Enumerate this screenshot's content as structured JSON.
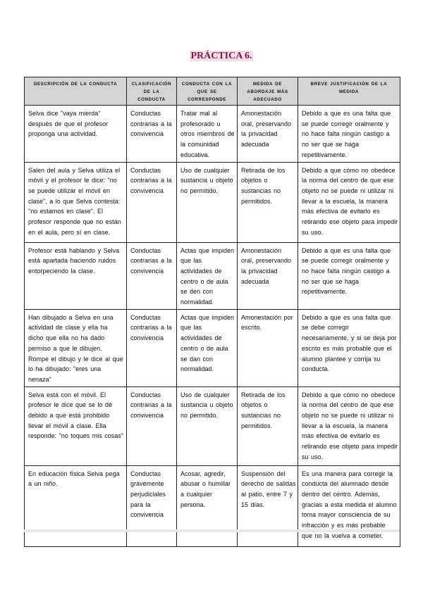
{
  "title": "PRÁCTICA 6.",
  "table": {
    "headers": [
      "DESCRIPCIÓN DE LA CONDUCTA",
      "CLASIFICACIÓN DE LA CONDUCTA",
      "CONDUCTA CON LA QUE SE CORRESPONDE",
      "MEDIDA DE ABORDAJE MÁS ADECUADO",
      "BREVE JUSTIFICACIÓN DE LA MEDIDA"
    ],
    "rows": [
      [
        "Selva dice \"vaya mierda\" después de que el profesor proponga una actividad.",
        "Conductas contrarias a la convivencia",
        "Tratar mal al profesorado u otros miembros de la comunidad educativa.",
        "Amonestación oral, preservando la privacidad adecuada",
        "Debido a que es una falta que se puede corregir oralmente y no hace falta ningún castigo a no ser que se haga repetitivamente."
      ],
      [
        "Salen del aula y Selva utiliza el móvil y el profesor le dice: \"no se puede utilizar el móvil en clase\", a lo que Selva contesta: \"no estamos en clase\". El profesor responde que no están en el aula, pero sí en clase.",
        "Conductas contrarias a la convivencia",
        "Uso de cualquier sustancia u objeto no permitido.",
        "Retirada de los objetos o sustancias no permitidos.",
        "Debido a que cómo no obedece la norma del centro de que ese objeto no se puede ni utilizar ni llevar a la escuela, la manera más efectiva de evitarlo es retirando ese objeto para impedir su uso."
      ],
      [
        "Profesor está hablando y Selva está apartada haciendo ruidos entorpeciendo la clase.",
        "Conductas contrarias a la convivencia",
        "Actas que impiden que las actividades de centro o de aula se den con normalidad.",
        "Amonestación oral, preservando la privacidad adecuada",
        "Debido a que es una falta que se puede corregir oralmente y no hace falta ningún castigo a no ser que se haga repetitivamente."
      ],
      [
        "Han dibujado a Selva en una actividad de clase y ella ha dicho que ella no ha dado permiso a que le dibujen. Rompe el dibujo y le dice al que lo ha dibujado: \"eres una nenaza\"",
        "Conductas contrarias a la convivencia",
        "Actas que impiden que las actividades de centro o de aula se dan con normalidad.",
        "Amonestación por escrito.",
        "Debido a que es una falta que se debe corregir necesariamente, y si se deja por escrito es más probable que el alumno plantee y corrija su conducta."
      ],
      [
        "Selva está con el móvil. El profesor le dice que se lo dé debido a que está prohibido llevar el móvil a clase. Ella responde: \"no toques mis cosas\"",
        "Conductas contrarias a la convivencia",
        "Uso de cualquier sustancia u objeto no permitido.",
        "Retirada de los objetos o sustancias no permitidos.",
        "Debido a que cómo no obedece la norma del centro de que ese objeto no se puede ni utilizar ni llevar a la escuela, la manera más efectiva de evitarlo es retirando ese objeto para impedir su uso."
      ],
      [
        "En educación física Selva pega a un niño.",
        "Conductas gravemente perjudiciales para la convivencia",
        "Acosar, agredir, abusar o humillar a cualquier persona.",
        "Suspensión del derecho de salidas al patio, entre 7 y 15 días.",
        "Es una manera para corregir la conducta del alumnado desde dentro del centro. Además, gracias a esta medida el alumno toma mayor consciencia de su infracción y es más probable que no la vuelva a cometer."
      ]
    ]
  }
}
